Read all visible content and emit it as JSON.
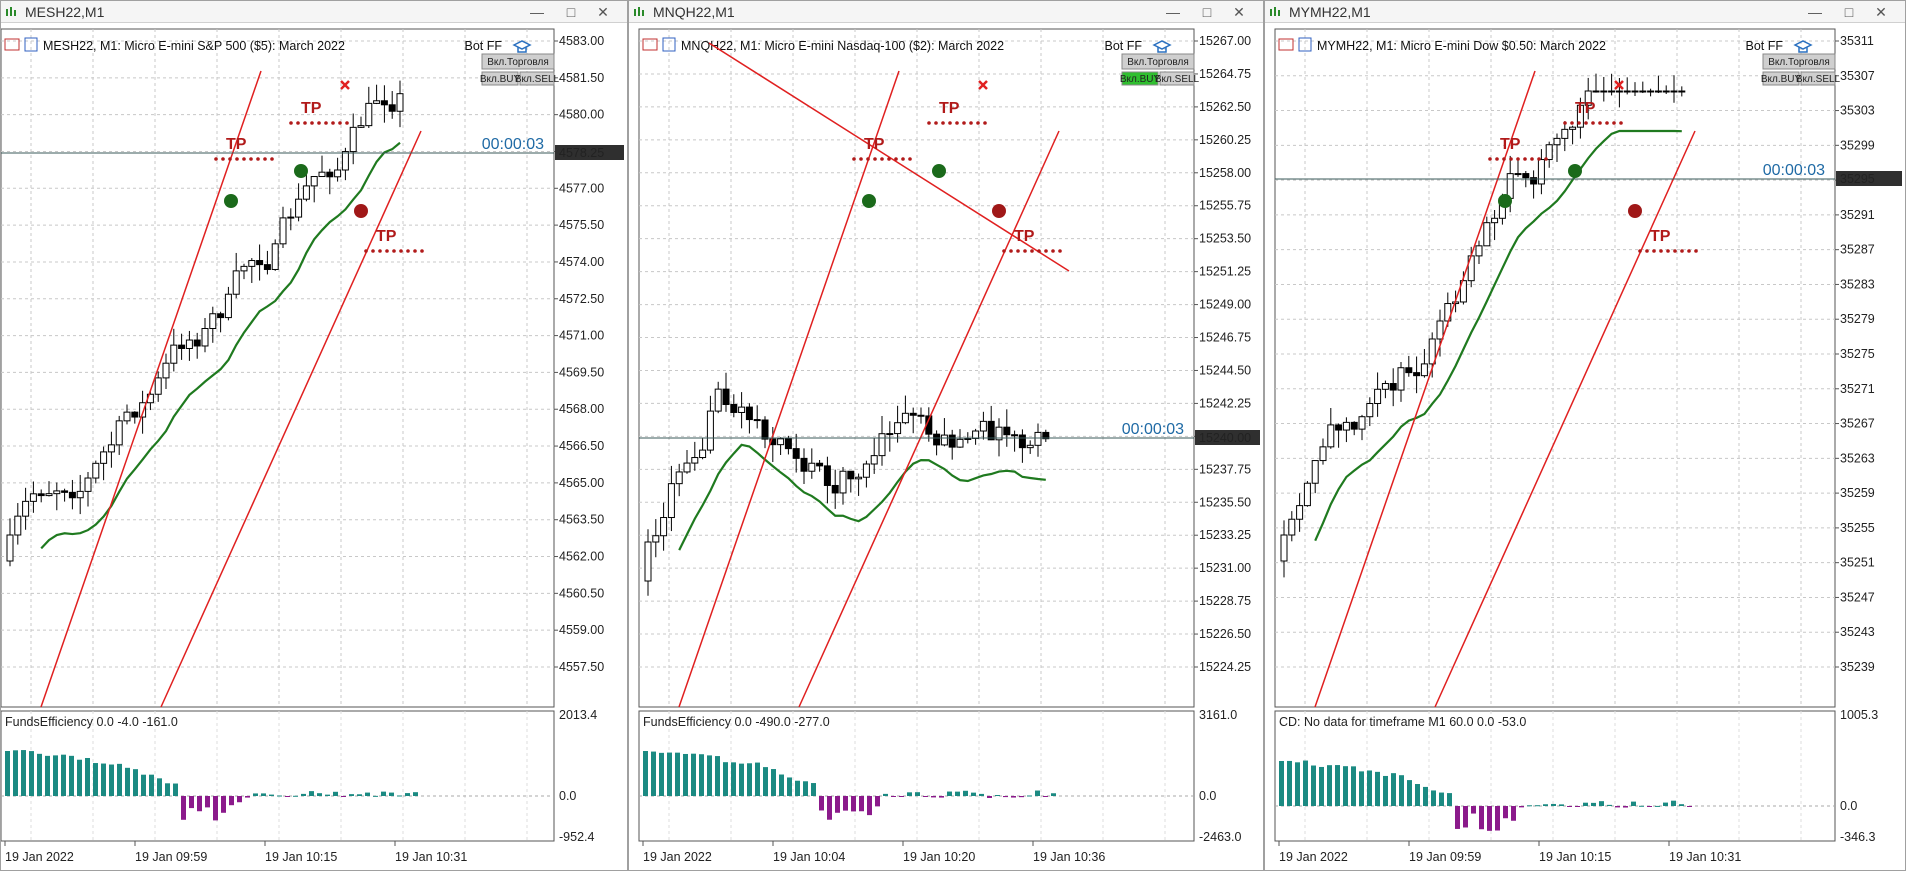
{
  "windows": [
    {
      "title": "MESH22,M1",
      "chart_label": "MESH22, M1:  Micro E-mini S&P 500 ($5): March 2022",
      "bot_label": "Bot FF",
      "btn_trade": "Вкл.Торговля",
      "btn_buy": "Вкл.BUY",
      "btn_sell": "Вкл.SELL",
      "buy_active": false,
      "timer": "00:00:03",
      "current_price": "4578.25",
      "price_ticks": [
        "4583.00",
        "4581.50",
        "4580.00",
        "4578.50",
        "4577.00",
        "4575.50",
        "4574.00",
        "4572.50",
        "4571.00",
        "4569.50",
        "4568.00",
        "4566.50",
        "4565.00",
        "4563.50",
        "4562.00",
        "4560.50",
        "4559.00",
        "4557.50"
      ],
      "time_ticks": [
        "19 Jan 2022",
        "19 Jan 09:59",
        "19 Jan 10:15",
        "19 Jan 10:31"
      ],
      "indicator_label": "FundsEfficiency 0.0 -4.0 -161.0",
      "indicator_ticks": [
        "2013.4",
        "0.0",
        "-952.4"
      ],
      "tp_label": "TP"
    },
    {
      "title": "MNQH22,M1",
      "chart_label": "MNQH22, M1:  Micro E-mini Nasdaq-100 ($2): March 2022",
      "bot_label": "Bot FF",
      "btn_trade": "Вкл.Торговля",
      "btn_buy": "Вкл.BUY",
      "btn_sell": "Вкл.SELL",
      "buy_active": true,
      "timer": "00:00:03",
      "current_price": "15240.00",
      "price_ticks": [
        "15267.00",
        "15264.75",
        "15262.50",
        "15260.25",
        "15258.00",
        "15255.75",
        "15253.50",
        "15251.25",
        "15249.00",
        "15246.75",
        "15244.50",
        "15242.25",
        "15240.00",
        "15237.75",
        "15235.50",
        "15233.25",
        "15231.00",
        "15228.75",
        "15226.50",
        "15224.25"
      ],
      "time_ticks": [
        "19 Jan 2022",
        "19 Jan 10:04",
        "19 Jan 10:20",
        "19 Jan 10:36"
      ],
      "indicator_label": "FundsEfficiency 0.0 -490.0 -277.0",
      "indicator_ticks": [
        "3161.0",
        "0.0",
        "-2463.0"
      ],
      "tp_label": "TP"
    },
    {
      "title": "MYMH22,M1",
      "chart_label": "MYMH22, M1:  Micro E-mini Dow $0.50: March 2022",
      "bot_label": "Bot FF",
      "btn_trade": "Вкл.Торговля",
      "btn_buy": "Вкл.BUY",
      "btn_sell": "Вкл.SELL",
      "buy_active": false,
      "timer": "00:00:03",
      "current_price": "35295",
      "price_ticks": [
        "35311",
        "35307",
        "35303",
        "35299",
        "35295",
        "35291",
        "35287",
        "35283",
        "35279",
        "35275",
        "35271",
        "35267",
        "35263",
        "35259",
        "35255",
        "35251",
        "35247",
        "35243",
        "35239"
      ],
      "time_ticks": [
        "19 Jan 2022",
        "19 Jan 09:59",
        "19 Jan 10:15",
        "19 Jan 10:31"
      ],
      "indicator_label": "CD: No data for timeframe M1 60.0 0.0 -53.0",
      "indicator_ticks": [
        "1005.3",
        "0.0",
        "-346.3"
      ],
      "tp_label": "TP"
    }
  ],
  "colors": {
    "bull": "#ffffff",
    "bear": "#000000",
    "ma": "#1f7a1f",
    "trend": "#e02020",
    "hist_pos": "#1b8a82",
    "hist_neg": "#8b1a8b",
    "tp": "#b11a1a",
    "timer": "#1f6aa5"
  },
  "icons": [
    "chart-window-icon",
    "minimize-icon",
    "maximize-icon",
    "close-icon",
    "graduation-cap-icon"
  ]
}
